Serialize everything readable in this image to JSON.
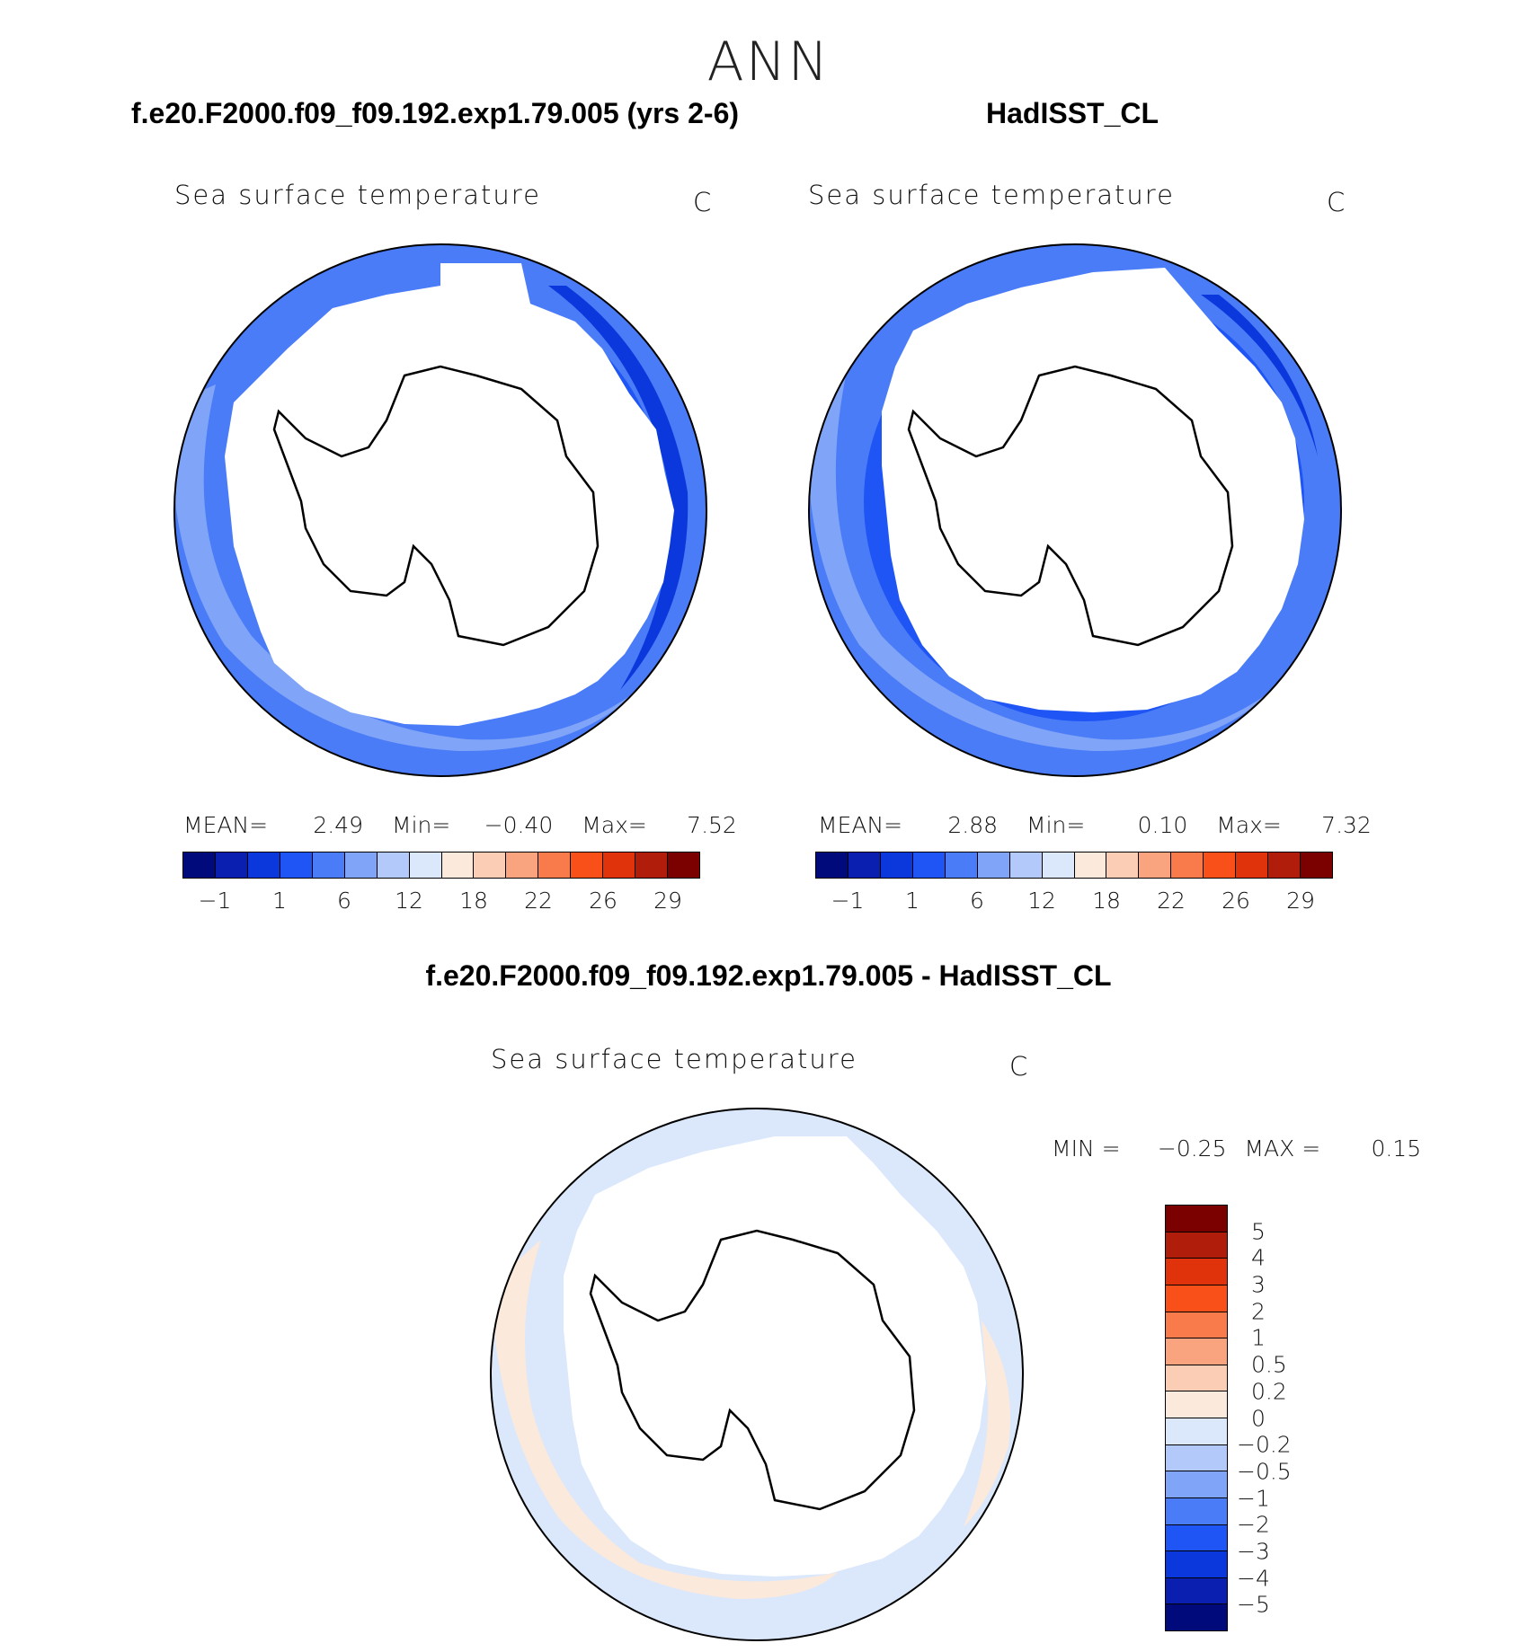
{
  "figure": {
    "title": "ANN"
  },
  "panels": [
    {
      "case_title": "f.e20.F2000.f09_f09.192.exp1.79.005 (yrs 2-6)",
      "variable": "Sea surface temperature",
      "units": "C",
      "stats": {
        "mean_label": "MEAN=",
        "mean": "2.49",
        "min_label": "Min=",
        "min": "−0.40",
        "max_label": "Max=",
        "max": "7.52"
      }
    },
    {
      "case_title": "HadISST_CL",
      "variable": "Sea surface temperature",
      "units": "C",
      "stats": {
        "mean_label": "MEAN=",
        "mean": "2.88",
        "min_label": "Min=",
        "min": "0.10",
        "max_label": "Max=",
        "max": "7.32"
      }
    },
    {
      "case_title": "f.e20.F2000.f09_f09.192.exp1.79.005 - HadISST_CL",
      "variable": "Sea surface temperature",
      "units": "C",
      "stats": {
        "min_label": "MIN =",
        "min": "−0.25",
        "max_label": "MAX =",
        "max": "0.15"
      }
    }
  ],
  "abs_colorbar": {
    "colors": [
      "#000a7a",
      "#0a1fb0",
      "#0b38dc",
      "#1f55f5",
      "#4b7cf7",
      "#7fa4f8",
      "#b2c9fa",
      "#dbe8fb",
      "#fbe9dc",
      "#fbcdb4",
      "#f9a47f",
      "#f97b4b",
      "#f85018",
      "#e0330c",
      "#b01e0b",
      "#7b0000"
    ],
    "ticks": [
      "−1",
      "1",
      "6",
      "12",
      "18",
      "22",
      "26",
      "29"
    ]
  },
  "diff_colorbar": {
    "colors": [
      "#7b0000",
      "#b01e0b",
      "#e0330c",
      "#f85018",
      "#f97b4b",
      "#f9a47f",
      "#fbcdb4",
      "#fbe9dc",
      "#dbe8fb",
      "#b2c9fa",
      "#7fa4f8",
      "#4b7cf7",
      "#1f55f5",
      "#0b38dc",
      "#0a1fb0",
      "#000a7a"
    ],
    "labels": [
      "5",
      "4",
      "3",
      "2",
      "1",
      "0.5",
      "0.2",
      "0",
      "−0.2",
      "−0.5",
      "−1",
      "−2",
      "−3",
      "−4",
      "−5"
    ]
  },
  "chart_data": [
    {
      "type": "heatmap",
      "title": "f.e20.F2000.f09_f09.192.exp1.79.005 (yrs 2-6)",
      "subtitle": "Sea surface temperature",
      "units": "C",
      "projection": "south polar stereographic",
      "mean": 2.49,
      "min": -0.4,
      "max": 7.52,
      "contour_levels": [
        -1,
        1,
        6,
        12,
        18,
        22,
        26,
        29
      ]
    },
    {
      "type": "heatmap",
      "title": "HadISST_CL",
      "subtitle": "Sea surface temperature",
      "units": "C",
      "projection": "south polar stereographic",
      "mean": 2.88,
      "min": 0.1,
      "max": 7.32,
      "contour_levels": [
        -1,
        1,
        6,
        12,
        18,
        22,
        26,
        29
      ]
    },
    {
      "type": "heatmap",
      "title": "f.e20.F2000.f09_f09.192.exp1.79.005 - HadISST_CL",
      "subtitle": "Sea surface temperature",
      "units": "C",
      "projection": "south polar stereographic",
      "min": -0.25,
      "max": 0.15,
      "contour_levels": [
        -5,
        -4,
        -3,
        -2,
        -1,
        -0.5,
        -0.2,
        0,
        0.2,
        0.5,
        1,
        2,
        3,
        4,
        5
      ]
    }
  ]
}
